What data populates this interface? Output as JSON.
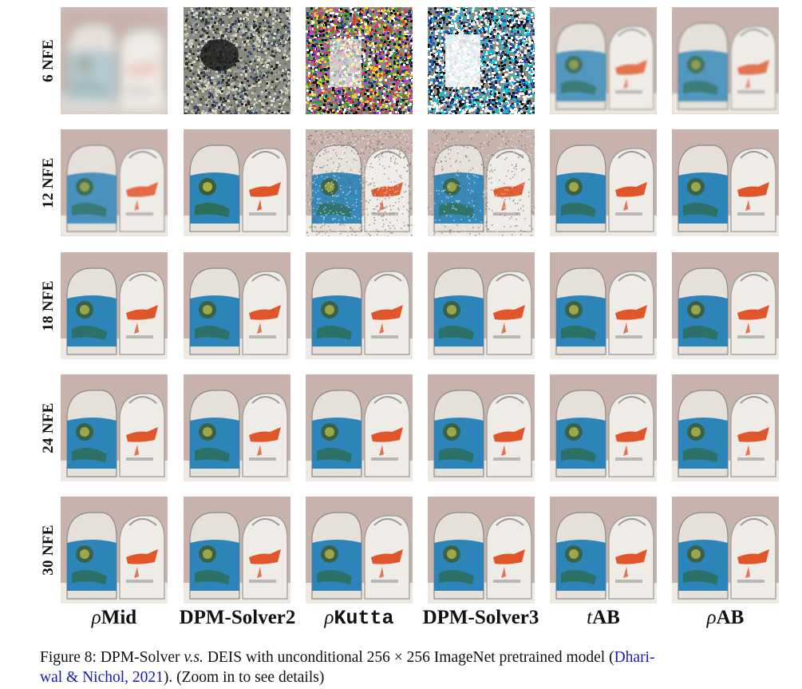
{
  "rows": [
    "6 NFE",
    "12 NFE",
    "18 NFE",
    "24 NFE",
    "30 NFE"
  ],
  "columns": [
    {
      "prefix": "ρ",
      "name": "Mid"
    },
    {
      "prefix": "",
      "name": "DPM-Solver2"
    },
    {
      "prefix": "ρ",
      "name": "Kutta"
    },
    {
      "prefix": "",
      "name": "DPM-Solver3"
    },
    {
      "prefix": "t",
      "name": "AB"
    },
    {
      "prefix": "ρ",
      "name": "AB"
    }
  ],
  "caption": {
    "label": "Figure 8:",
    "text_a": "DPM-Solver",
    "text_vs": "v.s.",
    "text_b": "DEIS with unconditional 256 × 256 ImageNet pretrained model (",
    "cite_a": "Dhari-",
    "cite_b": "wal & Nichol, 2021",
    "text_c": "). (Zoom in to see details)"
  },
  "colors": {
    "blue_pot": "#2d84b8",
    "orange_fish": "#e0562a",
    "background": "#c7b3ab",
    "citation": "#1a1ab0"
  }
}
